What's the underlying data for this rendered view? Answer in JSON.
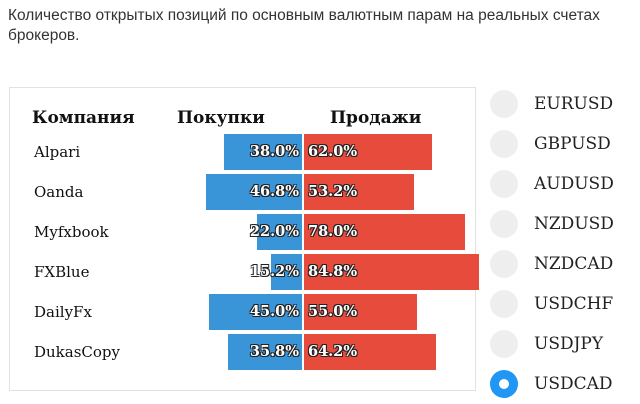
{
  "caption": "Количество открытых позиций по основным валютным парам на реальных счетах брокеров.",
  "table": {
    "headers": {
      "company": "Компания",
      "buy": "Покупки",
      "sell": "Продажи"
    },
    "colors": {
      "buy": "#3a95d8",
      "sell": "#e64b3c"
    },
    "rows": [
      {
        "company": "Alpari",
        "buy_pct": 38.0,
        "sell_pct": 62.0,
        "buy_label": "38.0%",
        "sell_label": "62.0%"
      },
      {
        "company": "Oanda",
        "buy_pct": 46.8,
        "sell_pct": 53.2,
        "buy_label": "46.8%",
        "sell_label": "53.2%"
      },
      {
        "company": "Myfxbook",
        "buy_pct": 22.0,
        "sell_pct": 78.0,
        "buy_label": "22.0%",
        "sell_label": "78.0%"
      },
      {
        "company": "FXBlue",
        "buy_pct": 15.2,
        "sell_pct": 84.8,
        "buy_label": "15.2%",
        "sell_label": "84.8%"
      },
      {
        "company": "DailyFx",
        "buy_pct": 45.0,
        "sell_pct": 55.0,
        "buy_label": "45.0%",
        "sell_label": "55.0%"
      },
      {
        "company": "DukasCopy",
        "buy_pct": 35.8,
        "sell_pct": 64.2,
        "buy_label": "35.8%",
        "sell_label": "64.2%"
      }
    ]
  },
  "pairs": {
    "options": [
      "EURUSD",
      "GBPUSD",
      "AUDUSD",
      "NZDUSD",
      "NZDCAD",
      "USDCHF",
      "USDJPY",
      "USDCAD"
    ],
    "selected": "USDCAD"
  }
}
